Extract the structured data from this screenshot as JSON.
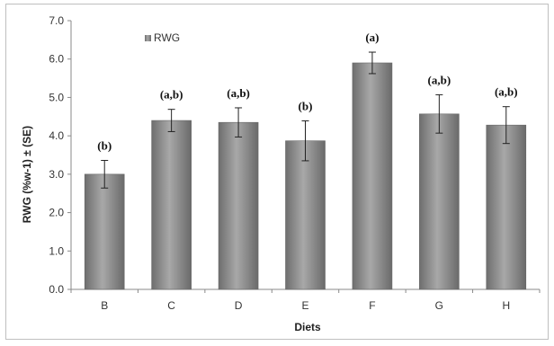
{
  "chart_data": {
    "type": "bar",
    "xlabel": "Diets",
    "ylabel": "RWG (%w-1) ± (SE)",
    "ylim": [
      0,
      7
    ],
    "yticks": [
      "0.0",
      "1.0",
      "2.0",
      "3.0",
      "4.0",
      "5.0",
      "6.0",
      "7.0"
    ],
    "categories": [
      "B",
      "C",
      "D",
      "E",
      "F",
      "G",
      "H"
    ],
    "series": [
      {
        "name": "RWG",
        "values": [
          3.0,
          4.4,
          4.35,
          3.87,
          5.9,
          4.57,
          4.28
        ],
        "error": [
          0.36,
          0.29,
          0.38,
          0.52,
          0.28,
          0.5,
          0.48
        ],
        "color": "#8c8c8c"
      }
    ],
    "annotations": [
      "(b)",
      "(a,b)",
      "(a,b)",
      "(b)",
      "(a)",
      "(a,b)",
      "(a,b)"
    ],
    "legend": {
      "position": "top-left"
    },
    "grid": false
  }
}
